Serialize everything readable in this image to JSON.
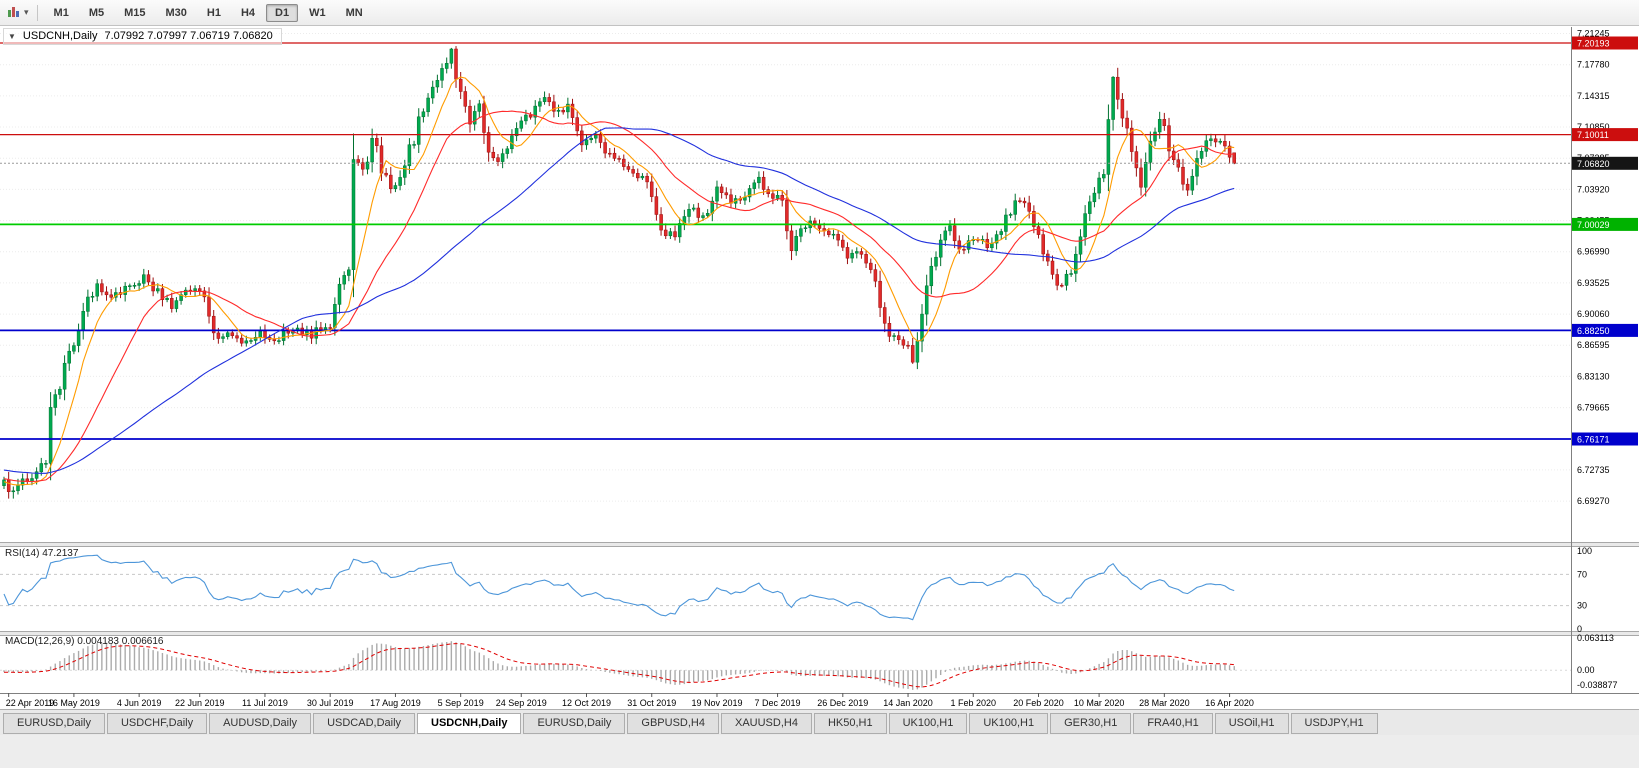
{
  "toolbar": {
    "timeframes": [
      {
        "label": "M1",
        "active": false
      },
      {
        "label": "M5",
        "active": false
      },
      {
        "label": "M15",
        "active": false
      },
      {
        "label": "M30",
        "active": false
      },
      {
        "label": "H1",
        "active": false
      },
      {
        "label": "H4",
        "active": false
      },
      {
        "label": "D1",
        "active": true
      },
      {
        "label": "W1",
        "active": false
      },
      {
        "label": "MN",
        "active": false
      }
    ]
  },
  "chart_header": {
    "collapse_icon": "▼",
    "symbol": "USDCNH,Daily",
    "ohlc": "7.07992 7.07997 7.06719 7.06820"
  },
  "price_axis": {
    "labels": [
      "7.21245",
      "7.17780",
      "7.14315",
      "7.10850",
      "7.07385",
      "7.03920",
      "7.00455",
      "6.96990",
      "6.93525",
      "6.90060",
      "6.86595",
      "6.83130",
      "6.79665",
      "6.76200",
      "6.72735",
      "6.69270"
    ],
    "boxes": [
      {
        "text": "7.20193",
        "price": 7.20193,
        "color": "#CC0E0E"
      },
      {
        "text": "7.10011",
        "price": 7.10011,
        "color": "#CC0E0E"
      },
      {
        "text": "7.00029",
        "price": 7.00029,
        "color": "#00B200"
      },
      {
        "text": "6.88250",
        "price": 6.8825,
        "color": "#0000CC"
      },
      {
        "text": "6.76171",
        "price": 6.76171,
        "color": "#0000CC"
      },
      {
        "text": "7.06820",
        "price": 7.0682,
        "color": "#151515"
      }
    ]
  },
  "time_axis": {
    "labels": [
      "22 Apr 2019",
      "16 May 2019",
      "4 Jun 2019",
      "22 Jun 2019",
      "11 Jul 2019",
      "30 Jul 2019",
      "17 Aug 2019",
      "5 Sep 2019",
      "24 Sep 2019",
      "12 Oct 2019",
      "31 Oct 2019",
      "19 Nov 2019",
      "7 Dec 2019",
      "26 Dec 2019",
      "14 Jan 2020",
      "1 Feb 2020",
      "20 Feb 2020",
      "10 Mar 2020",
      "28 Mar 2020",
      "16 Apr 2020"
    ]
  },
  "indicators": {
    "rsi": {
      "title": "RSI(14) 47.2137",
      "period": 14,
      "value": 47.2137,
      "axis_labels": [
        "100",
        "70",
        "30",
        "0"
      ],
      "levels": [
        70,
        30
      ],
      "line_color": "#4D96D9"
    },
    "macd": {
      "title": "MACD(12,26,9) 0.004183 0.006616",
      "main_value": 0.004183,
      "signal_value": 0.006616,
      "axis_labels": [
        "0.063113",
        "0.00",
        "-0.038877"
      ],
      "histogram_color": "#ABABAB",
      "signal_color": "#E00000"
    }
  },
  "chart_data": {
    "type": "candlestick",
    "symbol": "USDCNH",
    "timeframe": "Daily",
    "bars_total": 265,
    "current": {
      "open": 7.07992,
      "high": 7.07997,
      "low": 7.06719,
      "close": 7.0682
    },
    "y_range": {
      "top": 7.2197,
      "bottom": 6.647
    },
    "hlines": [
      {
        "price": 7.20193,
        "color": "#CC0E0E",
        "width": 1.3
      },
      {
        "price": 7.10011,
        "color": "#CC0E0E",
        "width": 1.3
      },
      {
        "price": 7.00029,
        "color": "#00CC00",
        "width": 1.8
      },
      {
        "price": 6.8825,
        "color": "#0000CC",
        "width": 1.8
      },
      {
        "price": 6.76171,
        "color": "#0000CC",
        "width": 1.8
      }
    ],
    "colors": {
      "up_body": "#00A94F",
      "up_line": "#00702F",
      "down_body": "#E02A2A",
      "down_line": "#9C0F0F"
    },
    "moving_averages": [
      {
        "period": 8,
        "color": "#FF9C00"
      },
      {
        "period": 21,
        "color": "#FF2B2B"
      },
      {
        "period": 55,
        "color": "#2030DD"
      }
    ],
    "close_waypoints": [
      [
        0,
        6.712
      ],
      [
        2,
        6.7
      ],
      [
        4,
        6.716
      ],
      [
        7,
        6.726
      ],
      [
        9,
        6.733
      ],
      [
        10,
        6.788
      ],
      [
        12,
        6.822
      ],
      [
        14,
        6.858
      ],
      [
        17,
        6.902
      ],
      [
        20,
        6.935
      ],
      [
        23,
        6.916
      ],
      [
        26,
        6.928
      ],
      [
        30,
        6.944
      ],
      [
        33,
        6.924
      ],
      [
        36,
        6.912
      ],
      [
        40,
        6.927
      ],
      [
        43,
        6.924
      ],
      [
        45,
        6.872
      ],
      [
        48,
        6.881
      ],
      [
        51,
        6.866
      ],
      [
        54,
        6.879
      ],
      [
        58,
        6.871
      ],
      [
        62,
        6.885
      ],
      [
        66,
        6.877
      ],
      [
        70,
        6.891
      ],
      [
        73,
        6.943
      ],
      [
        74,
        6.95
      ],
      [
        75,
        7.078
      ],
      [
        77,
        7.057
      ],
      [
        79,
        7.097
      ],
      [
        81,
        7.061
      ],
      [
        83,
        7.041
      ],
      [
        85,
        7.057
      ],
      [
        88,
        7.094
      ],
      [
        90,
        7.131
      ],
      [
        93,
        7.164
      ],
      [
        96,
        7.192
      ],
      [
        98,
        7.141
      ],
      [
        100,
        7.117
      ],
      [
        102,
        7.131
      ],
      [
        104,
        7.081
      ],
      [
        106,
        7.067
      ],
      [
        109,
        7.097
      ],
      [
        112,
        7.117
      ],
      [
        114,
        7.134
      ],
      [
        116,
        7.147
      ],
      [
        118,
        7.119
      ],
      [
        121,
        7.133
      ],
      [
        124,
        7.091
      ],
      [
        127,
        7.102
      ],
      [
        130,
        7.077
      ],
      [
        133,
        7.067
      ],
      [
        136,
        7.057
      ],
      [
        139,
        7.037
      ],
      [
        141,
        6.991
      ],
      [
        144,
        6.989
      ],
      [
        147,
        7.021
      ],
      [
        150,
        7.007
      ],
      [
        153,
        7.037
      ],
      [
        156,
        7.027
      ],
      [
        159,
        7.031
      ],
      [
        162,
        7.049
      ],
      [
        164,
        7.033
      ],
      [
        167,
        7.027
      ],
      [
        169,
        6.971
      ],
      [
        172,
        7.001
      ],
      [
        175,
        6.997
      ],
      [
        178,
        6.987
      ],
      [
        181,
        6.961
      ],
      [
        184,
        6.969
      ],
      [
        187,
        6.931
      ],
      [
        190,
        6.881
      ],
      [
        193,
        6.871
      ],
      [
        195,
        6.851
      ],
      [
        197,
        6.907
      ],
      [
        200,
        6.967
      ],
      [
        203,
        6.997
      ],
      [
        205,
        6.971
      ],
      [
        208,
        6.987
      ],
      [
        211,
        6.977
      ],
      [
        214,
        6.997
      ],
      [
        217,
        7.027
      ],
      [
        220,
        7.017
      ],
      [
        223,
        6.971
      ],
      [
        226,
        6.931
      ],
      [
        229,
        6.947
      ],
      [
        232,
        7.017
      ],
      [
        235,
        7.051
      ],
      [
        236,
        7.061
      ],
      [
        238,
        7.158
      ],
      [
        240,
        7.117
      ],
      [
        242,
        7.081
      ],
      [
        244,
        7.047
      ],
      [
        246,
        7.091
      ],
      [
        248,
        7.117
      ],
      [
        250,
        7.087
      ],
      [
        252,
        7.057
      ],
      [
        254,
        7.041
      ],
      [
        256,
        7.071
      ],
      [
        258,
        7.087
      ],
      [
        260,
        7.094
      ],
      [
        262,
        7.091
      ],
      [
        264,
        7.0682
      ]
    ],
    "wick_overrides": {
      "2": {
        "low": 6.6955
      },
      "96": {
        "high": 7.1965
      },
      "195": {
        "low": 6.8452
      },
      "238": {
        "high": 7.1651
      }
    }
  },
  "tabs": [
    {
      "label": "EURUSD,Daily",
      "active": false
    },
    {
      "label": "USDCHF,Daily",
      "active": false
    },
    {
      "label": "AUDUSD,Daily",
      "active": false
    },
    {
      "label": "USDCAD,Daily",
      "active": false
    },
    {
      "label": "USDCNH,Daily",
      "active": true
    },
    {
      "label": "EURUSD,Daily",
      "active": false
    },
    {
      "label": "GBPUSD,H4",
      "active": false
    },
    {
      "label": "XAUUSD,H4",
      "active": false
    },
    {
      "label": "HK50,H1",
      "active": false
    },
    {
      "label": "UK100,H1",
      "active": false
    },
    {
      "label": "UK100,H1",
      "active": false
    },
    {
      "label": "GER30,H1",
      "active": false
    },
    {
      "label": "FRA40,H1",
      "active": false
    },
    {
      "label": "USOil,H1",
      "active": false
    },
    {
      "label": "USDJPY,H1",
      "active": false
    }
  ]
}
